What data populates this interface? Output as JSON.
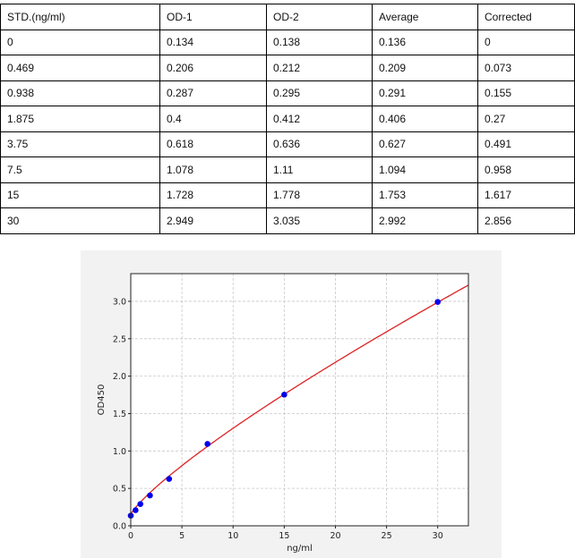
{
  "table": {
    "headers": [
      "STD.(ng/ml)",
      "OD-1",
      "OD-2",
      "Average",
      "Corrected"
    ],
    "rows": [
      [
        "0",
        "0.134",
        "0.138",
        "0.136",
        "0"
      ],
      [
        "0.469",
        "0.206",
        "0.212",
        "0.209",
        "0.073"
      ],
      [
        "0.938",
        "0.287",
        "0.295",
        "0.291",
        "0.155"
      ],
      [
        "1.875",
        "0.4",
        "0.412",
        "0.406",
        "0.27"
      ],
      [
        "3.75",
        "0.618",
        "0.636",
        "0.627",
        "0.491"
      ],
      [
        "7.5",
        "1.078",
        "1.11",
        "1.094",
        "0.958"
      ],
      [
        "15",
        "1.728",
        "1.778",
        "1.753",
        "1.617"
      ],
      [
        "30",
        "2.949",
        "3.035",
        "2.992",
        "2.856"
      ]
    ]
  },
  "chart_data": {
    "type": "scatter",
    "xlabel": "ng/ml",
    "ylabel": "OD450",
    "xlim": [
      0,
      33
    ],
    "ylim": [
      0,
      3.37
    ],
    "xticks": [
      0,
      5,
      10,
      15,
      20,
      25,
      30
    ],
    "yticks": [
      "0.0",
      "0.5",
      "1.0",
      "1.5",
      "2.0",
      "2.5",
      "3.0"
    ],
    "grid": true,
    "points": {
      "x": [
        0,
        0.469,
        0.938,
        1.875,
        3.75,
        7.5,
        15,
        30
      ],
      "y": [
        0.136,
        0.209,
        0.291,
        0.406,
        0.627,
        1.094,
        1.753,
        2.992
      ],
      "color": "#0000ee"
    },
    "fit_curve": {
      "color": "#dd2222"
    }
  }
}
